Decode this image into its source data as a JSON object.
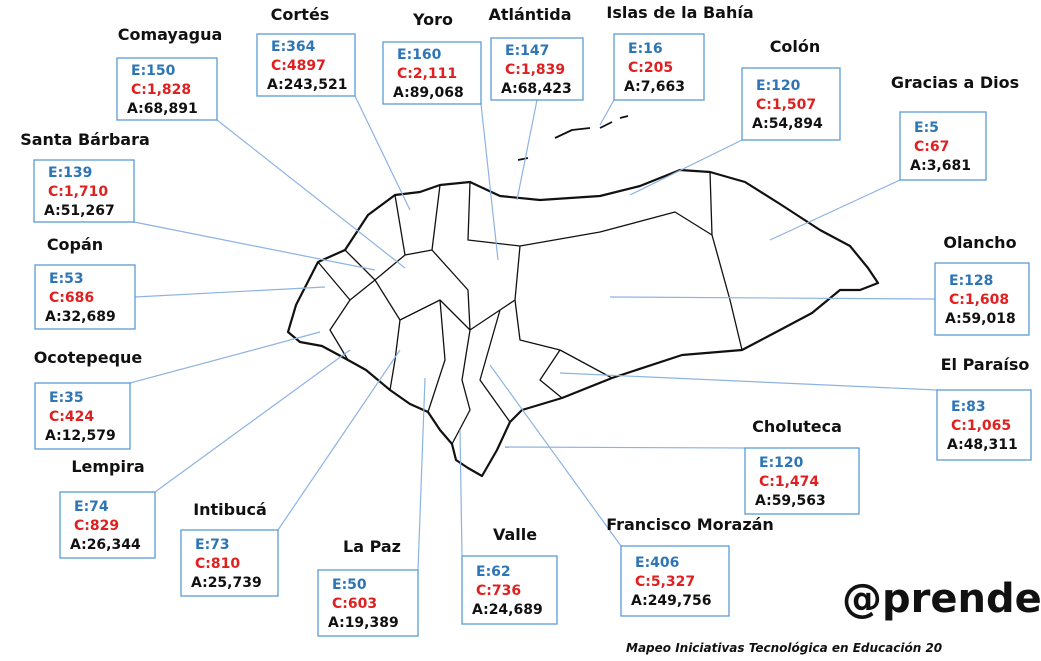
{
  "departments": [
    {
      "name": "Comayagua",
      "e": "E:150",
      "c": "C:1,828",
      "a": "A:68,891"
    },
    {
      "name": "Cortés",
      "e": "E:364",
      "c": "C:4897",
      "a": "A:243,521"
    },
    {
      "name": "Yoro",
      "e": "E:160",
      "c": "C:2,111",
      "a": "A:89,068"
    },
    {
      "name": "Atlántida",
      "e": "E:147",
      "c": "C:1,839",
      "a": "A:68,423"
    },
    {
      "name": "Islas de la Bahía",
      "e": "E:16",
      "c": "C:205",
      "a": "A:7,663"
    },
    {
      "name": "Colón",
      "e": "E:120",
      "c": "C:1,507",
      "a": "A:54,894"
    },
    {
      "name": "Gracias a Dios",
      "e": "E:5",
      "c": "C:67",
      "a": "A:3,681"
    },
    {
      "name": "Santa Bárbara",
      "e": "E:139",
      "c": "C:1,710",
      "a": "A:51,267"
    },
    {
      "name": "Copán",
      "e": "E:53",
      "c": "C:686",
      "a": "A:32,689"
    },
    {
      "name": "Olancho",
      "e": "E:128",
      "c": "C:1,608",
      "a": "A:59,018"
    },
    {
      "name": "Ocotepeque",
      "e": "E:35",
      "c": "C:424",
      "a": "A:12,579"
    },
    {
      "name": "El Paraíso",
      "e": "E:83",
      "c": "C:1,065",
      "a": "A:48,311"
    },
    {
      "name": "Choluteca",
      "e": "E:120",
      "c": "C:1,474",
      "a": "A:59,563"
    },
    {
      "name": "Lempira",
      "e": "E:74",
      "c": "C:829",
      "a": "A:26,344"
    },
    {
      "name": "Intibucá",
      "e": "E:73",
      "c": "C:810",
      "a": "A:25,739"
    },
    {
      "name": "La Paz",
      "e": "E:50",
      "c": "C:603",
      "a": "A:19,389"
    },
    {
      "name": "Valle",
      "e": "E:62",
      "c": "C:736",
      "a": "A:24,689"
    },
    {
      "name": "Francisco Morazán",
      "e": "E:406",
      "c": "C:5,327",
      "a": "A:249,756"
    }
  ],
  "brand": "@prende",
  "footer": "Mapeo Iniciativas Tecnológica  en Educación 20"
}
